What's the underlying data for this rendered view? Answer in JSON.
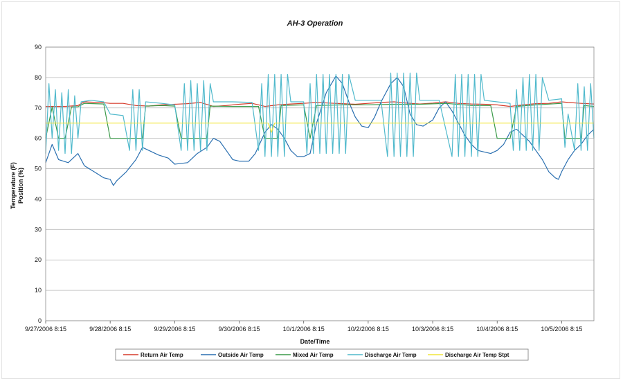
{
  "chart_data": {
    "type": "line",
    "title": "AH-3 Operation",
    "xlabel": "Date/Time",
    "ylabel_line1": "Temperature (F)",
    "ylabel_line2": "Position (%)",
    "ylim": [
      0,
      90
    ],
    "yticks": [
      0,
      10,
      20,
      30,
      40,
      50,
      60,
      70,
      80,
      90
    ],
    "xlim": [
      0,
      8.5
    ],
    "x_unit": "days since 9/27/2006 8:15",
    "xticks": [
      {
        "x": 0,
        "label": "9/27/2006 8:15"
      },
      {
        "x": 1,
        "label": "9/28/2006 8:15"
      },
      {
        "x": 2,
        "label": "9/29/2006 8:15"
      },
      {
        "x": 3,
        "label": "9/30/2006 8:15"
      },
      {
        "x": 4,
        "label": "10/1/2006 8:15"
      },
      {
        "x": 5,
        "label": "10/2/2006 8:15"
      },
      {
        "x": 6,
        "label": "10/3/2006 8:15"
      },
      {
        "x": 7,
        "label": "10/4/2006 8:15"
      },
      {
        "x": 8,
        "label": "10/5/2006 8:15"
      }
    ],
    "grid": "horizontal",
    "legend_position": "bottom",
    "series": [
      {
        "name": "Return Air Temp",
        "color": "#d63a2a",
        "points": [
          [
            0,
            70.5
          ],
          [
            0.3,
            70.5
          ],
          [
            0.5,
            70.8
          ],
          [
            0.6,
            72
          ],
          [
            0.9,
            71.7
          ],
          [
            1.0,
            71.5
          ],
          [
            1.2,
            71.5
          ],
          [
            1.4,
            70.8
          ],
          [
            1.6,
            70.6
          ],
          [
            1.8,
            71
          ],
          [
            2.0,
            71.2
          ],
          [
            2.2,
            71.4
          ],
          [
            2.4,
            71.8
          ],
          [
            2.6,
            70.5
          ],
          [
            2.8,
            70.8
          ],
          [
            3.0,
            71.2
          ],
          [
            3.2,
            71.5
          ],
          [
            3.4,
            70.5
          ],
          [
            3.6,
            71
          ],
          [
            3.8,
            71.3
          ],
          [
            4.0,
            71.5
          ],
          [
            4.2,
            71.8
          ],
          [
            4.4,
            71.6
          ],
          [
            4.6,
            71.4
          ],
          [
            4.8,
            71.2
          ],
          [
            5.0,
            71.5
          ],
          [
            5.2,
            71.8
          ],
          [
            5.4,
            72
          ],
          [
            5.6,
            71.6
          ],
          [
            5.8,
            71.3
          ],
          [
            6.0,
            71.6
          ],
          [
            6.2,
            72
          ],
          [
            6.4,
            71.5
          ],
          [
            6.6,
            71.3
          ],
          [
            6.8,
            71.2
          ],
          [
            7.0,
            71
          ],
          [
            7.2,
            70.5
          ],
          [
            7.4,
            71
          ],
          [
            7.6,
            71.4
          ],
          [
            7.8,
            71.5
          ],
          [
            8.0,
            72
          ],
          [
            8.1,
            71.8
          ],
          [
            8.3,
            71.5
          ],
          [
            8.5,
            71.3
          ]
        ]
      },
      {
        "name": "Outside Air Temp",
        "color": "#2a6fb0",
        "points": [
          [
            0,
            52
          ],
          [
            0.1,
            58
          ],
          [
            0.2,
            53
          ],
          [
            0.35,
            52
          ],
          [
            0.5,
            55
          ],
          [
            0.6,
            51
          ],
          [
            0.75,
            49
          ],
          [
            0.9,
            47
          ],
          [
            1.0,
            46.5
          ],
          [
            1.05,
            44.5
          ],
          [
            1.1,
            46
          ],
          [
            1.25,
            49
          ],
          [
            1.4,
            53
          ],
          [
            1.5,
            57
          ],
          [
            1.6,
            56
          ],
          [
            1.75,
            54.5
          ],
          [
            1.9,
            53.5
          ],
          [
            2.0,
            51.5
          ],
          [
            2.2,
            52
          ],
          [
            2.35,
            55
          ],
          [
            2.5,
            57
          ],
          [
            2.6,
            60
          ],
          [
            2.7,
            59
          ],
          [
            2.8,
            56
          ],
          [
            2.9,
            53
          ],
          [
            3.0,
            52.5
          ],
          [
            3.15,
            52.5
          ],
          [
            3.25,
            55
          ],
          [
            3.4,
            62
          ],
          [
            3.5,
            64.5
          ],
          [
            3.6,
            63
          ],
          [
            3.7,
            60
          ],
          [
            3.8,
            56
          ],
          [
            3.9,
            54
          ],
          [
            4.0,
            54
          ],
          [
            4.1,
            55
          ],
          [
            4.2,
            65
          ],
          [
            4.35,
            75
          ],
          [
            4.5,
            80.5
          ],
          [
            4.6,
            78
          ],
          [
            4.7,
            72
          ],
          [
            4.8,
            67
          ],
          [
            4.9,
            64
          ],
          [
            5.0,
            63.5
          ],
          [
            5.1,
            67
          ],
          [
            5.2,
            72
          ],
          [
            5.35,
            78
          ],
          [
            5.45,
            80
          ],
          [
            5.55,
            77
          ],
          [
            5.65,
            68
          ],
          [
            5.75,
            64.5
          ],
          [
            5.85,
            64
          ],
          [
            6.0,
            66
          ],
          [
            6.1,
            70
          ],
          [
            6.2,
            72
          ],
          [
            6.3,
            69
          ],
          [
            6.4,
            65
          ],
          [
            6.5,
            61
          ],
          [
            6.6,
            58
          ],
          [
            6.7,
            56
          ],
          [
            6.8,
            55.5
          ],
          [
            6.9,
            55
          ],
          [
            7.0,
            56
          ],
          [
            7.1,
            58
          ],
          [
            7.2,
            62
          ],
          [
            7.3,
            63
          ],
          [
            7.4,
            61
          ],
          [
            7.5,
            59
          ],
          [
            7.6,
            56
          ],
          [
            7.7,
            53
          ],
          [
            7.8,
            49
          ],
          [
            7.9,
            47
          ],
          [
            7.95,
            46.5
          ],
          [
            8.0,
            49
          ],
          [
            8.1,
            53
          ],
          [
            8.2,
            56
          ],
          [
            8.3,
            58
          ],
          [
            8.4,
            61
          ],
          [
            8.5,
            63
          ]
        ]
      },
      {
        "name": "Mixed Air Temp",
        "color": "#3a9a48",
        "points": [
          [
            0,
            60
          ],
          [
            0.1,
            70.3
          ],
          [
            0.2,
            60
          ],
          [
            0.3,
            60
          ],
          [
            0.4,
            70.3
          ],
          [
            0.5,
            70.4
          ],
          [
            0.6,
            71.5
          ],
          [
            0.9,
            71.3
          ],
          [
            1.0,
            60
          ],
          [
            1.5,
            60
          ],
          [
            1.55,
            70.6
          ],
          [
            1.8,
            70.8
          ],
          [
            2.0,
            70.6
          ],
          [
            2.1,
            60
          ],
          [
            2.5,
            60
          ],
          [
            2.55,
            70.6
          ],
          [
            2.9,
            70.5
          ],
          [
            3.3,
            70.5
          ],
          [
            3.4,
            60
          ],
          [
            3.6,
            60
          ],
          [
            3.65,
            70.8
          ],
          [
            4.0,
            71
          ],
          [
            4.1,
            60
          ],
          [
            4.2,
            70.8
          ],
          [
            4.6,
            71
          ],
          [
            5.0,
            71
          ],
          [
            5.4,
            71.2
          ],
          [
            5.8,
            71.2
          ],
          [
            6.2,
            71.5
          ],
          [
            6.6,
            70.8
          ],
          [
            6.9,
            70.8
          ],
          [
            7.0,
            60
          ],
          [
            7.2,
            60
          ],
          [
            7.3,
            70.5
          ],
          [
            7.6,
            71
          ],
          [
            8.0,
            71.5
          ],
          [
            8.05,
            60
          ],
          [
            8.3,
            60
          ],
          [
            8.35,
            70.8
          ],
          [
            8.5,
            70.5
          ]
        ]
      },
      {
        "name": "Discharge Air Temp",
        "color": "#4fb9cc",
        "points": [
          [
            0,
            55
          ],
          [
            0.05,
            78
          ],
          [
            0.1,
            60
          ],
          [
            0.15,
            76
          ],
          [
            0.2,
            56
          ],
          [
            0.25,
            75
          ],
          [
            0.3,
            55
          ],
          [
            0.35,
            76
          ],
          [
            0.4,
            55
          ],
          [
            0.45,
            74
          ],
          [
            0.5,
            60
          ],
          [
            0.55,
            72
          ],
          [
            0.7,
            72.5
          ],
          [
            0.9,
            72
          ],
          [
            1.0,
            68
          ],
          [
            1.2,
            67.5
          ],
          [
            1.3,
            56
          ],
          [
            1.35,
            76
          ],
          [
            1.4,
            56
          ],
          [
            1.45,
            76
          ],
          [
            1.5,
            56
          ],
          [
            1.55,
            72
          ],
          [
            1.8,
            71.5
          ],
          [
            2.0,
            71
          ],
          [
            2.1,
            56
          ],
          [
            2.15,
            78
          ],
          [
            2.2,
            56
          ],
          [
            2.25,
            79
          ],
          [
            2.3,
            56
          ],
          [
            2.35,
            78
          ],
          [
            2.4,
            56
          ],
          [
            2.45,
            79
          ],
          [
            2.5,
            56
          ],
          [
            2.55,
            78
          ],
          [
            2.6,
            72
          ],
          [
            2.9,
            72
          ],
          [
            3.2,
            71.8
          ],
          [
            3.3,
            56
          ],
          [
            3.35,
            78
          ],
          [
            3.4,
            54
          ],
          [
            3.45,
            81
          ],
          [
            3.5,
            54
          ],
          [
            3.55,
            81
          ],
          [
            3.6,
            54
          ],
          [
            3.65,
            81
          ],
          [
            3.7,
            54
          ],
          [
            3.75,
            81
          ],
          [
            3.8,
            72
          ],
          [
            4.0,
            72
          ],
          [
            4.05,
            55
          ],
          [
            4.1,
            78
          ],
          [
            4.15,
            55
          ],
          [
            4.2,
            81
          ],
          [
            4.25,
            55
          ],
          [
            4.3,
            81
          ],
          [
            4.35,
            55
          ],
          [
            4.4,
            81
          ],
          [
            4.45,
            55
          ],
          [
            4.5,
            81
          ],
          [
            4.55,
            55
          ],
          [
            4.6,
            81
          ],
          [
            4.65,
            55
          ],
          [
            4.7,
            81
          ],
          [
            4.8,
            72.5
          ],
          [
            5.2,
            72.5
          ],
          [
            5.3,
            54
          ],
          [
            5.35,
            81.5
          ],
          [
            5.4,
            54
          ],
          [
            5.45,
            81.5
          ],
          [
            5.5,
            54
          ],
          [
            5.55,
            81.5
          ],
          [
            5.6,
            54
          ],
          [
            5.65,
            81.5
          ],
          [
            5.7,
            54
          ],
          [
            5.75,
            81.5
          ],
          [
            5.8,
            72.5
          ],
          [
            6.1,
            72.5
          ],
          [
            6.3,
            54
          ],
          [
            6.35,
            81
          ],
          [
            6.4,
            54
          ],
          [
            6.45,
            81
          ],
          [
            6.5,
            54
          ],
          [
            6.55,
            81
          ],
          [
            6.6,
            54
          ],
          [
            6.65,
            81
          ],
          [
            6.7,
            54
          ],
          [
            6.75,
            81
          ],
          [
            6.8,
            72.5
          ],
          [
            7.0,
            72
          ],
          [
            7.2,
            71.5
          ],
          [
            7.25,
            56
          ],
          [
            7.3,
            76
          ],
          [
            7.35,
            56
          ],
          [
            7.4,
            80
          ],
          [
            7.45,
            56
          ],
          [
            7.5,
            81
          ],
          [
            7.55,
            56
          ],
          [
            7.6,
            81
          ],
          [
            7.65,
            56
          ],
          [
            7.7,
            80
          ],
          [
            7.8,
            72.5
          ],
          [
            8.0,
            73
          ],
          [
            8.05,
            57
          ],
          [
            8.1,
            68
          ],
          [
            8.2,
            56
          ],
          [
            8.25,
            78
          ],
          [
            8.3,
            56
          ],
          [
            8.35,
            77
          ],
          [
            8.4,
            56
          ],
          [
            8.45,
            78
          ],
          [
            8.5,
            60
          ]
        ]
      },
      {
        "name": "Discharge Air Temp Stpt",
        "color": "#f1e63a",
        "points": [
          [
            0,
            65
          ],
          [
            3.45,
            65
          ],
          [
            3.5,
            62
          ],
          [
            3.55,
            65
          ],
          [
            8.5,
            65
          ]
        ]
      }
    ]
  }
}
